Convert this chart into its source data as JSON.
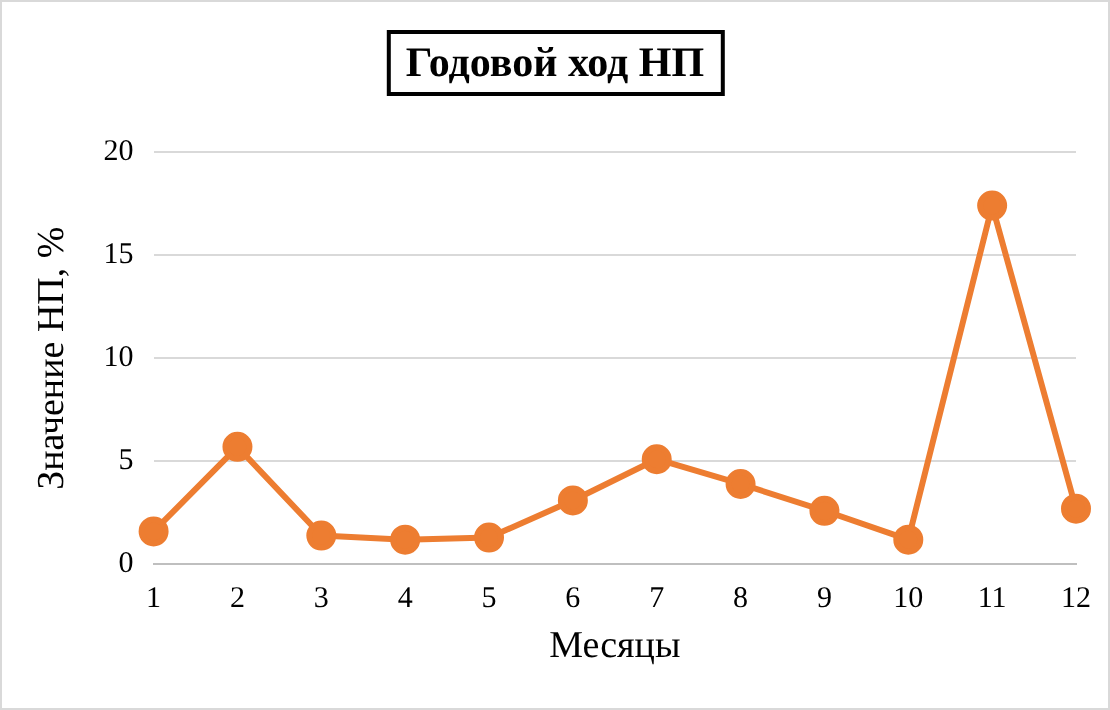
{
  "chart_data": {
    "type": "line",
    "title": "Годовой ход НП",
    "xlabel": "Месяцы",
    "ylabel": "Значение НП, %",
    "categories": [
      "1",
      "2",
      "3",
      "4",
      "5",
      "6",
      "7",
      "8",
      "9",
      "10",
      "11",
      "12"
    ],
    "series": [
      {
        "color": "#ed7d31",
        "values": [
          1.6,
          5.7,
          1.4,
          1.2,
          1.3,
          3.1,
          5.1,
          3.9,
          2.6,
          1.2,
          17.4,
          2.7
        ]
      }
    ],
    "ylim": [
      0,
      20
    ],
    "yticks": [
      0,
      5,
      10,
      15,
      20
    ],
    "grid": "y",
    "legend": false,
    "marker": "circle",
    "line_style": "solid"
  }
}
